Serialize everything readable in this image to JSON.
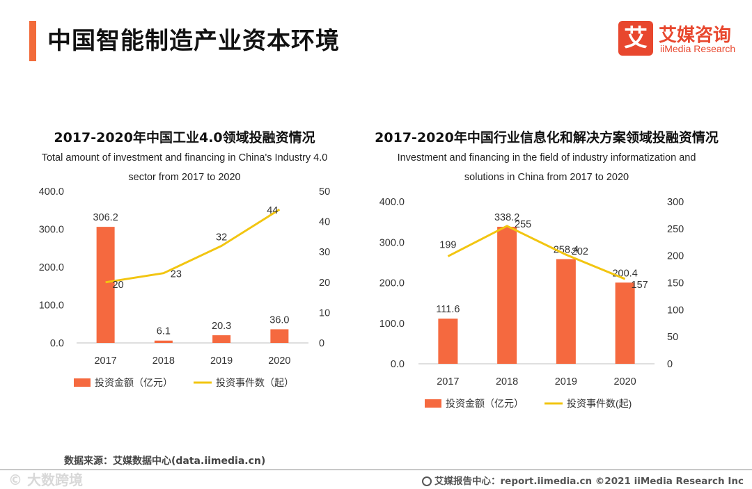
{
  "page": {
    "title": "中国智能制造产业资本环境",
    "logo_mark": "艾",
    "logo_cn": "艾媒咨询",
    "logo_en": "iiMedia Research",
    "source": "数据来源：艾媒数据中心(data.iimedia.cn)",
    "footer_left": "© 大数跨境",
    "footer_right": "艾媒报告中心：report.iimedia.cn   ©2021  iiMedia Research  Inc"
  },
  "chart_data": [
    {
      "type": "bar",
      "title": "2017-2020年中国工业4.0领域投融资情况",
      "subtitle_line1": "Total amount of investment and financing in China's Industry 4.0",
      "subtitle_line2": "sector from 2017 to 2020",
      "categories": [
        "2017",
        "2018",
        "2019",
        "2020"
      ],
      "series": [
        {
          "name": "投资金额（亿元）",
          "kind": "bar",
          "axis": "left",
          "values": [
            306.2,
            6.1,
            20.3,
            36.0
          ],
          "labels": [
            "306.2",
            "6.1",
            "20.3",
            "36.0"
          ]
        },
        {
          "name": "投资事件数（起）",
          "kind": "line",
          "axis": "right",
          "values": [
            20,
            23,
            32,
            44
          ],
          "labels": [
            "20",
            "23",
            "32",
            "44"
          ]
        }
      ],
      "left_axis": {
        "min": 0,
        "max": 400,
        "ticks": [
          "0.0",
          "100.0",
          "200.0",
          "300.0",
          "400.0"
        ],
        "tick_values": [
          0,
          100,
          200,
          300,
          400
        ]
      },
      "right_axis": {
        "min": 0,
        "max": 50,
        "ticks": [
          "0",
          "10",
          "20",
          "30",
          "40",
          "50"
        ],
        "tick_values": [
          0,
          10,
          20,
          30,
          40,
          50
        ]
      },
      "colors": {
        "bar": "#f5693f",
        "line": "#f2c511"
      },
      "grid": false,
      "legend_position": "bottom"
    },
    {
      "type": "bar",
      "title": "2017-2020年中国行业信息化和解决方案领域投融资情况",
      "subtitle_line1": "Investment and financing in the field of industry informatization and",
      "subtitle_line2": "solutions in China from 2017 to 2020",
      "categories": [
        "2017",
        "2018",
        "2019",
        "2020"
      ],
      "series": [
        {
          "name": "投资金额（亿元）",
          "kind": "bar",
          "axis": "left",
          "values": [
            111.6,
            338.2,
            258.4,
            200.4
          ],
          "labels": [
            "111.6",
            "338.2",
            "258.4",
            "200.4"
          ]
        },
        {
          "name": "投资事件数(起)",
          "kind": "line",
          "axis": "right",
          "values": [
            199,
            255,
            202,
            157
          ],
          "labels": [
            "199",
            "255",
            "202",
            "157"
          ]
        }
      ],
      "left_axis": {
        "min": 0,
        "max": 400,
        "ticks": [
          "0.0",
          "100.0",
          "200.0",
          "300.0",
          "400.0"
        ],
        "tick_values": [
          0,
          100,
          200,
          300,
          400
        ]
      },
      "right_axis": {
        "min": 0,
        "max": 300,
        "ticks": [
          "0",
          "50",
          "100",
          "150",
          "200",
          "250",
          "300"
        ],
        "tick_values": [
          0,
          50,
          100,
          150,
          200,
          250,
          300
        ]
      },
      "colors": {
        "bar": "#f5693f",
        "line": "#f2c511"
      },
      "grid": false,
      "legend_position": "bottom"
    }
  ]
}
